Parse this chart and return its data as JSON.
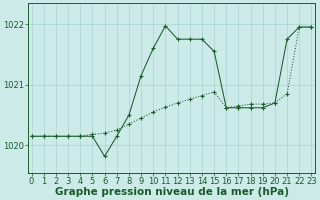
{
  "background_color": "#cceae8",
  "grid_color": "#a8d4d0",
  "line_color": "#1a5c2a",
  "xlabel": "Graphe pression niveau de la mer (hPa)",
  "xlabel_fontsize": 7.5,
  "yticks": [
    1020,
    1021,
    1022
  ],
  "xticks": [
    0,
    1,
    2,
    3,
    4,
    5,
    6,
    7,
    8,
    9,
    10,
    11,
    12,
    13,
    14,
    15,
    16,
    17,
    18,
    19,
    20,
    21,
    22,
    23
  ],
  "xlim": [
    -0.3,
    23.3
  ],
  "ylim": [
    1019.55,
    1022.35
  ],
  "series_dotted_x": [
    0,
    1,
    2,
    3,
    4,
    5,
    6,
    7,
    8,
    9,
    10,
    11,
    12,
    13,
    14,
    15,
    16,
    17,
    18,
    19,
    20,
    21,
    22,
    23
  ],
  "series_dotted_y": [
    1020.15,
    1020.15,
    1020.15,
    1020.15,
    1020.15,
    1020.18,
    1020.2,
    1020.25,
    1020.35,
    1020.45,
    1020.55,
    1020.63,
    1020.7,
    1020.76,
    1020.82,
    1020.88,
    1020.62,
    1020.65,
    1020.68,
    1020.68,
    1020.7,
    1020.85,
    1021.95,
    1021.95
  ],
  "series_solid_x": [
    0,
    1,
    2,
    3,
    4,
    5,
    6,
    7,
    8,
    9,
    10,
    11,
    12,
    13,
    14,
    15,
    16,
    17,
    18,
    19,
    20,
    21,
    22,
    23
  ],
  "series_solid_y": [
    1020.15,
    1020.15,
    1020.15,
    1020.15,
    1020.15,
    1020.15,
    1019.82,
    1020.15,
    1020.5,
    1021.15,
    1021.6,
    1021.97,
    1021.75,
    1021.75,
    1021.75,
    1021.55,
    1020.62,
    1020.62,
    1020.62,
    1020.62,
    1020.7,
    1021.75,
    1021.95,
    1021.95
  ],
  "tick_fontsize": 6.0
}
